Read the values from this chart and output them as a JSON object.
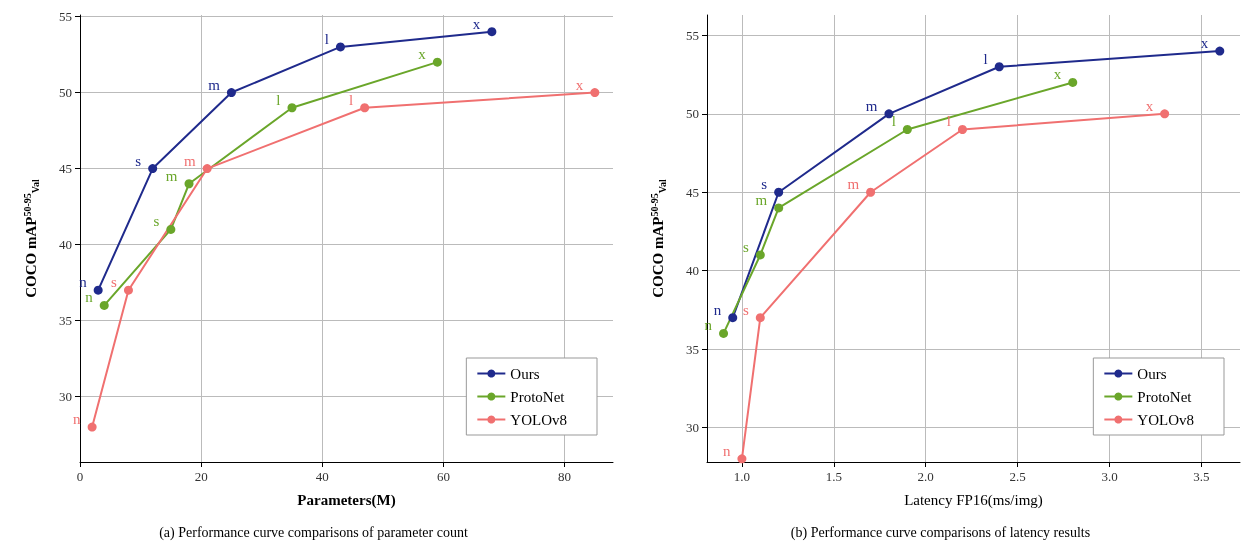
{
  "chart_data": [
    {
      "type": "line",
      "xlabel": "Parameters(M)",
      "ylabel": "COCO mAP$^{50-95}$$_{Val}$",
      "xlim": [
        0,
        88
      ],
      "xticks": [
        0,
        20,
        40,
        60,
        80
      ],
      "ylim": [
        25.7,
        55.1
      ],
      "yticks": [
        30,
        35,
        40,
        45,
        50,
        55
      ],
      "grid": true,
      "legend": "bottom right",
      "marker": "circle",
      "line_style": "solid",
      "annotations": [
        "(a) Performance curve comparisons of parameter count"
      ],
      "series": [
        {
          "name": "Ours",
          "color": "#1f2a8c",
          "x": [
            3,
            12,
            25,
            43,
            68
          ],
          "values": [
            37,
            45,
            50,
            53,
            54
          ],
          "value_labels": [
            "n",
            "s",
            "m",
            "l",
            "x"
          ]
        },
        {
          "name": "ProtoNet",
          "color": "#6aa62a",
          "x": [
            4,
            15,
            18,
            35,
            59
          ],
          "values": [
            36,
            41,
            44,
            49,
            52
          ],
          "value_labels": [
            "n",
            "s",
            "m",
            "l",
            "x"
          ]
        },
        {
          "name": "YOLOv8",
          "color": "#f07070",
          "x": [
            2,
            8,
            21,
            47,
            85
          ],
          "values": [
            28,
            37,
            45,
            49,
            50
          ],
          "value_labels": [
            "n",
            "s",
            "m",
            "l",
            "x"
          ]
        }
      ]
    },
    {
      "type": "line",
      "xlabel": "Latency FP16(ms/img)",
      "ylabel": "COCO mAP$^{50-95}$$_{Val}$",
      "xlim": [
        0.81,
        3.71
      ],
      "xticks": [
        {
          "value": 1,
          "label": "1.0"
        },
        1.5,
        {
          "value": 2,
          "label": "2.0"
        },
        2.5,
        {
          "value": 3,
          "label": "3.0"
        },
        3.5
      ],
      "ylim": [
        27.8,
        56.3
      ],
      "yticks": [
        30,
        35,
        40,
        45,
        50,
        55
      ],
      "grid": true,
      "legend": "bottom right",
      "marker": "circle",
      "line_style": "solid",
      "annotations": [
        "(b) Performance curve comparisons of latency results"
      ],
      "series": [
        {
          "name": "Ours",
          "color": "#1f2a8c",
          "x": [
            0.95,
            1.2,
            1.8,
            2.4,
            3.6
          ],
          "values": [
            37,
            45,
            50,
            53,
            54
          ],
          "value_labels": [
            "n",
            "s",
            "m",
            "l",
            "x"
          ]
        },
        {
          "name": "ProtoNet",
          "color": "#6aa62a",
          "x": [
            0.9,
            1.1,
            1.2,
            1.9,
            2.8
          ],
          "values": [
            36,
            41,
            44,
            49,
            52
          ],
          "value_labels": [
            "n",
            "s",
            "m",
            "l",
            "x"
          ]
        },
        {
          "name": "YOLOv8",
          "color": "#f07070",
          "x": [
            1.0,
            1.1,
            1.7,
            2.2,
            3.3
          ],
          "values": [
            28,
            37,
            45,
            49,
            50
          ],
          "value_labels": [
            "n",
            "s",
            "m",
            "l",
            "x"
          ]
        }
      ]
    }
  ]
}
